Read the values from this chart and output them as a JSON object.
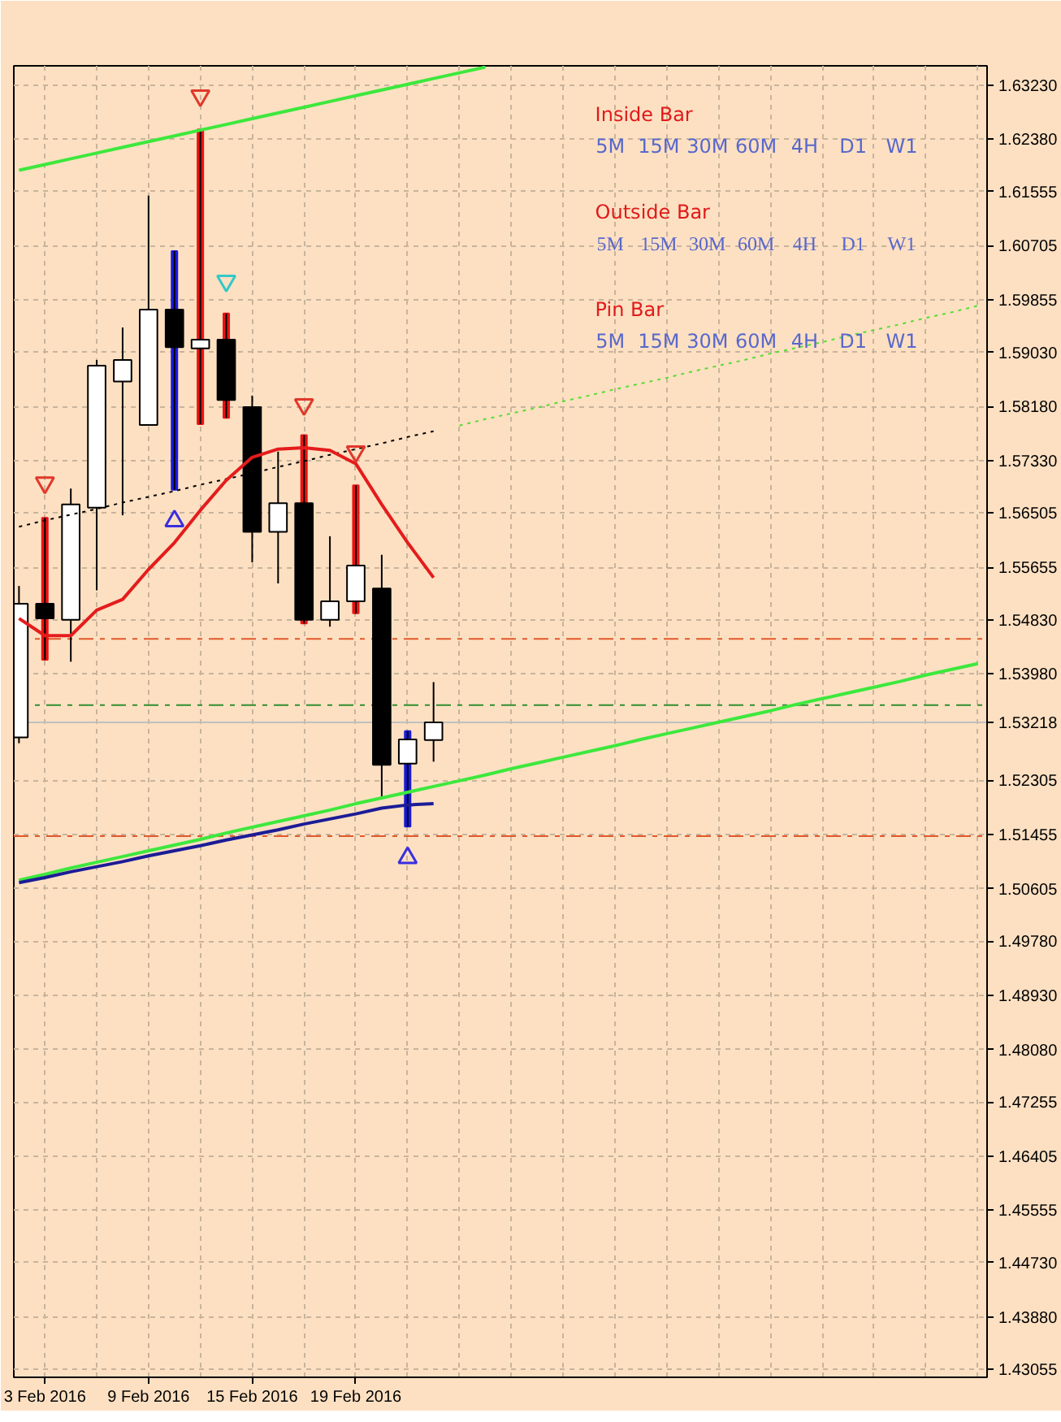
{
  "chart_data": {
    "type": "candlestick",
    "categories": [
      null,
      "3 Feb 2016",
      null,
      null,
      null,
      "9 Feb 2016",
      null,
      null,
      null,
      "15 Feb 2016",
      null,
      null,
      null,
      "19 Feb 2016",
      null,
      null,
      null,
      null,
      null,
      null,
      null,
      null,
      null,
      null,
      null,
      null,
      null,
      null,
      null,
      null,
      null,
      null,
      null,
      null,
      null,
      null,
      null,
      null
    ],
    "ohlc": [
      [
        1.5298,
        1.5536,
        1.5289,
        1.5508
      ],
      [
        1.5508,
        1.5643,
        1.542,
        1.5485
      ],
      [
        1.5483,
        1.5689,
        1.5417,
        1.5664
      ],
      [
        1.5659,
        1.5891,
        1.5529,
        1.5882
      ],
      [
        1.5857,
        1.5942,
        1.5647,
        1.5891
      ],
      [
        1.5789,
        1.6149,
        1.5789,
        1.597
      ],
      [
        1.597,
        1.6062,
        1.5687,
        1.5911
      ],
      [
        1.5909,
        1.6253,
        1.579,
        1.5923
      ],
      [
        1.5923,
        1.5964,
        1.58,
        1.5828
      ],
      [
        1.5817,
        1.5835,
        1.5573,
        1.5621
      ],
      [
        1.5621,
        1.5747,
        1.554,
        1.5666
      ],
      [
        1.5666,
        1.5773,
        1.5477,
        1.5483
      ],
      [
        1.5483,
        1.5614,
        1.5472,
        1.5512
      ],
      [
        1.5512,
        1.5694,
        1.5493,
        1.5568
      ],
      [
        1.5532,
        1.5585,
        1.5204,
        1.5255
      ],
      [
        1.5257,
        1.5308,
        1.5158,
        1.5295
      ],
      [
        1.5294,
        1.5385,
        1.526,
        1.53218
      ],
      null,
      null,
      null,
      null,
      null,
      null,
      null,
      null,
      null,
      null,
      null,
      null,
      null,
      null,
      null,
      null,
      null,
      null,
      null,
      null,
      null
    ],
    "series": [
      {
        "type": "line",
        "color": "#3de83d",
        "values": [
          1.6189,
          1.6198,
          1.6207,
          1.6216,
          1.6225,
          1.6234,
          1.6243,
          1.6252,
          1.6261,
          1.627,
          1.6279,
          1.6288,
          1.6297,
          1.6306,
          1.6315,
          1.6324,
          1.6333,
          1.6342,
          1.6351,
          null,
          null,
          null,
          null,
          null,
          null,
          null,
          null,
          null,
          null,
          null,
          null,
          null,
          null,
          null,
          null,
          null,
          null,
          null
        ]
      },
      {
        "type": "line",
        "color": "#3de83d",
        "values": [
          1.5074,
          1.5083,
          1.5093,
          1.5102,
          1.5111,
          1.512,
          1.5129,
          1.5138,
          1.5148,
          1.5157,
          1.5166,
          1.5175,
          1.5184,
          1.5194,
          1.5203,
          1.5212,
          1.5221,
          1.523,
          1.5239,
          1.5249,
          1.5258,
          1.5267,
          1.5276,
          1.5285,
          1.5295,
          1.5304,
          1.5313,
          1.5322,
          1.5331,
          1.534,
          1.535,
          1.5359,
          1.5368,
          1.5377,
          1.5386,
          1.5396,
          1.5405,
          1.5414
        ]
      },
      {
        "type": "line",
        "color": "#55dd33",
        "line_style": "dotted",
        "values": [
          null,
          null,
          null,
          null,
          null,
          null,
          null,
          null,
          null,
          null,
          null,
          null,
          null,
          null,
          null,
          null,
          null,
          1.5788,
          1.5798,
          1.5807,
          1.5816,
          1.5826,
          1.5835,
          1.5845,
          1.5854,
          1.5863,
          1.5873,
          1.5882,
          1.5891,
          1.5901,
          1.591,
          1.5919,
          1.5929,
          1.5938,
          1.5947,
          1.5957,
          1.5966,
          1.5976
        ]
      },
      {
        "type": "line",
        "color": "#000000",
        "line_style": "dotted",
        "values": [
          1.5629,
          1.5639,
          1.5648,
          1.5657,
          1.5667,
          1.5676,
          1.5685,
          1.5695,
          1.5704,
          1.5713,
          1.5723,
          1.5732,
          1.5742,
          1.5751,
          1.576,
          1.577,
          1.5779,
          null,
          null,
          null,
          null,
          null,
          null,
          null,
          null,
          null,
          null,
          null,
          null,
          null,
          null,
          null,
          null,
          null,
          null,
          null,
          null,
          null
        ]
      },
      {
        "type": "line",
        "color": "#e41c1c",
        "values": [
          1.5485,
          1.5458,
          1.5458,
          1.5498,
          1.5515,
          1.5562,
          1.5604,
          1.5655,
          1.5702,
          1.5738,
          1.5751,
          1.5753,
          1.5749,
          1.5728,
          1.5664,
          1.5604,
          1.5549,
          null,
          null,
          null,
          null,
          null,
          null,
          null,
          null,
          null,
          null,
          null,
          null,
          null,
          null,
          null,
          null,
          null,
          null,
          null,
          null,
          null
        ]
      },
      {
        "type": "line",
        "color": "#1c1c96",
        "values": [
          1.507,
          1.5078,
          1.5087,
          1.5095,
          1.5103,
          1.5112,
          1.512,
          1.5128,
          1.5137,
          1.5145,
          1.5153,
          1.5162,
          1.517,
          1.5178,
          1.5187,
          1.5192,
          1.5194,
          null,
          null,
          null,
          null,
          null,
          null,
          null,
          null,
          null,
          null,
          null,
          null,
          null,
          null,
          null,
          null,
          null,
          null,
          null,
          null,
          null
        ]
      },
      {
        "type": "bar",
        "base": [
          null,
          1.542,
          null,
          null,
          null,
          null,
          1.5687,
          1.579,
          1.58,
          null,
          null,
          1.5477,
          null,
          1.5493,
          null,
          1.5158,
          null,
          null,
          null,
          null,
          null,
          null,
          null,
          null,
          null,
          null,
          null,
          null,
          null,
          null,
          null,
          null,
          null,
          null,
          null,
          null,
          null,
          null
        ],
        "values": [
          null,
          0.0223,
          null,
          null,
          null,
          null,
          0.0375,
          0.0463,
          0.0164,
          null,
          null,
          0.0296,
          null,
          0.0201,
          null,
          0.015,
          null,
          null,
          null,
          null,
          null,
          null,
          null,
          null,
          null,
          null,
          null,
          null,
          null,
          null,
          null,
          null,
          null,
          null,
          null,
          null,
          null,
          null
        ],
        "colors": [
          null,
          "#ec1212",
          null,
          null,
          null,
          null,
          "#1a1adc",
          "#ec1212",
          "#ec1212",
          null,
          null,
          "#ec1212",
          null,
          "#ec1212",
          null,
          "#1a1adc",
          null,
          null,
          null,
          null,
          null,
          null,
          null,
          null,
          null,
          null,
          null,
          null,
          null,
          null,
          null,
          null,
          null,
          null,
          null,
          null,
          null,
          null
        ]
      },
      {
        "type": "scatter",
        "color": "#e0382a",
        "marker": "triangle",
        "values": [
          null,
          1.5698,
          null,
          null,
          null,
          null,
          null,
          1.6306,
          null,
          null,
          null,
          1.5821,
          null,
          1.5747,
          null,
          null,
          null,
          null,
          null,
          null,
          null,
          null,
          null,
          null,
          null,
          null,
          null,
          null,
          null,
          null,
          null,
          null,
          null,
          null,
          null,
          null,
          null,
          null
        ]
      },
      {
        "type": "scatter",
        "color": "#33c8c8",
        "marker": "triangle",
        "values": [
          null,
          null,
          null,
          null,
          null,
          null,
          null,
          null,
          1.6015,
          null,
          null,
          null,
          null,
          null,
          null,
          null,
          null,
          null,
          null,
          null,
          null,
          null,
          null,
          null,
          null,
          null,
          null,
          null,
          null,
          null,
          null,
          null,
          null,
          null,
          null,
          null,
          null,
          null
        ]
      },
      {
        "type": "scatter",
        "color": "#3a2ee0",
        "marker": "triangle",
        "values": [
          null,
          null,
          null,
          null,
          null,
          null,
          1.5638,
          null,
          null,
          null,
          null,
          null,
          null,
          null,
          null,
          1.5109,
          null,
          null,
          null,
          null,
          null,
          null,
          null,
          null,
          null,
          null,
          null,
          null,
          null,
          null,
          null,
          null,
          null,
          null,
          null,
          null,
          null,
          null
        ]
      }
    ],
    "ylim": [
      1.4293,
      1.6353
    ],
    "yticks": [
      {
        "value": 1.6323,
        "label": "1.63230"
      },
      {
        "value": 1.6238,
        "label": "1.62380"
      },
      {
        "value": 1.61555,
        "label": "1.61555"
      },
      {
        "value": 1.60705,
        "label": "1.60705"
      },
      {
        "value": 1.59855,
        "label": "1.59855"
      },
      {
        "value": 1.5903,
        "label": "1.59030"
      },
      {
        "value": 1.5818,
        "label": "1.58180"
      },
      {
        "value": 1.5733,
        "label": "1.57330"
      },
      {
        "value": 1.56505,
        "label": "1.56505"
      },
      {
        "value": 1.55655,
        "label": "1.55655"
      },
      {
        "value": 1.5483,
        "label": "1.54830"
      },
      {
        "value": 1.5398,
        "label": "1.53980"
      },
      {
        "value": 1.52305,
        "label": "1.52305"
      },
      {
        "value": 1.51455,
        "label": "1.51455"
      },
      {
        "value": 1.50605,
        "label": "1.50605"
      },
      {
        "value": 1.4978,
        "label": "1.49780"
      },
      {
        "value": 1.4893,
        "label": "1.48930"
      },
      {
        "value": 1.4808,
        "label": "1.48080"
      },
      {
        "value": 1.47255,
        "label": "1.47255"
      },
      {
        "value": 1.46405,
        "label": "1.46405"
      },
      {
        "value": 1.45555,
        "label": "1.45555"
      },
      {
        "value": 1.4473,
        "label": "1.44730"
      },
      {
        "value": 1.4388,
        "label": "1.43880"
      },
      {
        "value": 1.43055,
        "label": "1.43055"
      }
    ],
    "ref_lines": [
      {
        "axis": "y",
        "value": 1.5453,
        "color": "#e2572b",
        "line_style": "dashed"
      },
      {
        "axis": "y",
        "value": 1.5349,
        "color": "#2f8f2f",
        "line_style": "dashed"
      },
      {
        "axis": "y",
        "value": 1.5143,
        "color": "#e2572b",
        "line_style": "dashed"
      },
      {
        "axis": "y",
        "value": 1.53218,
        "label": "1.53218",
        "color": "#c0c0c0",
        "line_style": "solid"
      }
    ],
    "grid": true,
    "annotations": [
      "Inside Bar",
      "5M",
      "15M",
      "30M",
      "60M",
      "4H",
      "D1",
      "W1",
      "Outside Bar",
      "5M",
      "15M",
      "30M",
      "60M",
      "4H",
      "D1",
      "W1",
      "Pin Bar",
      "5M",
      "15M",
      "30M",
      "60M",
      "4H",
      "D1",
      "W1"
    ]
  }
}
